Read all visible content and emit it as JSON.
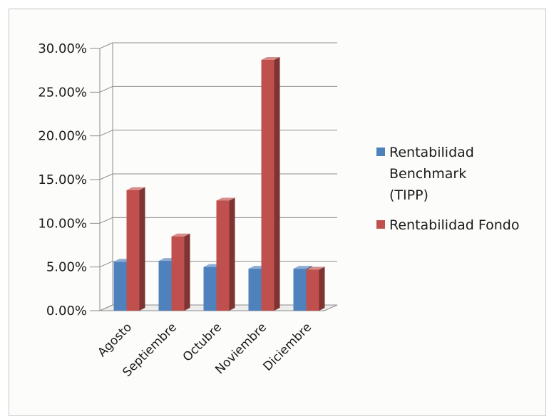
{
  "chart_data": {
    "type": "bar",
    "style": "3d-clustered-column",
    "categories": [
      "Agosto",
      "Septiembre",
      "Octubre",
      "Noviembre",
      "Diciembre"
    ],
    "series": [
      {
        "name": "Rentabilidad Benchmark (TIPP)",
        "name_lines": [
          "Rentabilidad",
          "Benchmark",
          "(TIPP)"
        ],
        "color": "#4f81bd",
        "values": [
          5.6,
          5.7,
          5.0,
          4.8,
          4.8
        ]
      },
      {
        "name": "Rentabilidad Fondo",
        "name_lines": [
          "Rentabilidad Fondo"
        ],
        "color": "#c0504d",
        "values": [
          13.8,
          8.5,
          12.6,
          28.7,
          4.7
        ]
      }
    ],
    "ylim": [
      0,
      30
    ],
    "yticks": [
      "0.00%",
      "5.00%",
      "10.00%",
      "15.00%",
      "20.00%",
      "25.00%",
      "30.00%"
    ],
    "grid": true,
    "legend": "right",
    "title": "",
    "xlabel": "",
    "ylabel": ""
  }
}
